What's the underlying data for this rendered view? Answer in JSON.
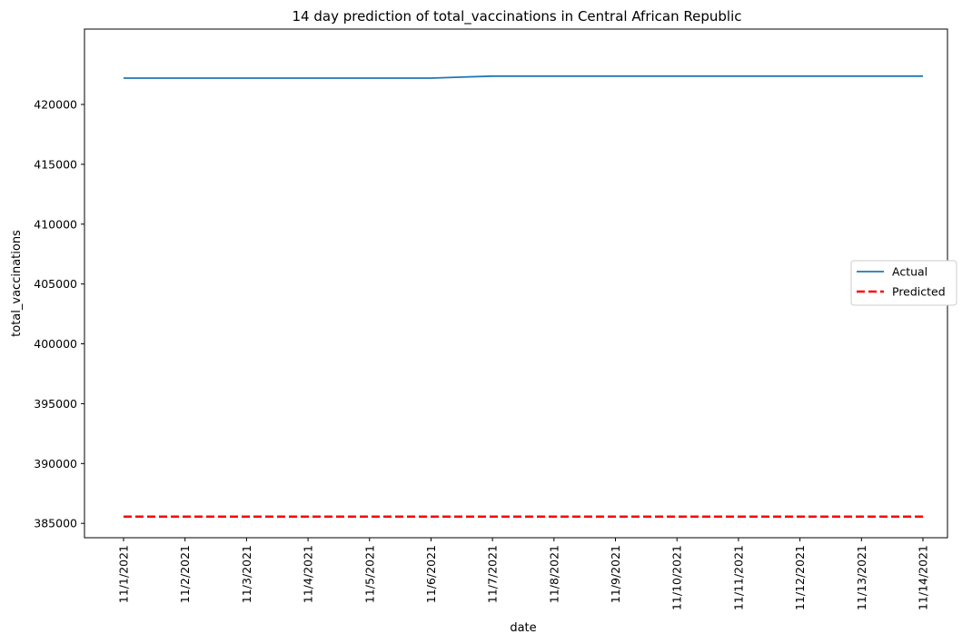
{
  "chart_data": {
    "type": "line",
    "title": "14 day prediction of total_vaccinations in Central African Republic",
    "xlabel": "date",
    "ylabel": "total_vaccinations",
    "categories": [
      "11/1/2021",
      "11/2/2021",
      "11/3/2021",
      "11/4/2021",
      "11/5/2021",
      "11/6/2021",
      "11/7/2021",
      "11/8/2021",
      "11/9/2021",
      "11/10/2021",
      "11/11/2021",
      "11/12/2021",
      "11/13/2021",
      "11/14/2021"
    ],
    "ylim": [
      383800,
      426300
    ],
    "yticks": [
      385000,
      390000,
      395000,
      400000,
      405000,
      410000,
      415000,
      420000
    ],
    "grid": false,
    "legend_position": "center right",
    "series": [
      {
        "name": "Actual",
        "color": "#1f77b4",
        "style": "solid",
        "values": [
          422200,
          422200,
          422200,
          422200,
          422200,
          422200,
          422370,
          422370,
          422370,
          422370,
          422370,
          422370,
          422370,
          422370
        ]
      },
      {
        "name": "Predicted",
        "color": "#ff0000",
        "style": "dashed",
        "values": [
          385560,
          385560,
          385560,
          385560,
          385560,
          385560,
          385560,
          385560,
          385560,
          385560,
          385560,
          385560,
          385560,
          385560
        ]
      }
    ]
  }
}
